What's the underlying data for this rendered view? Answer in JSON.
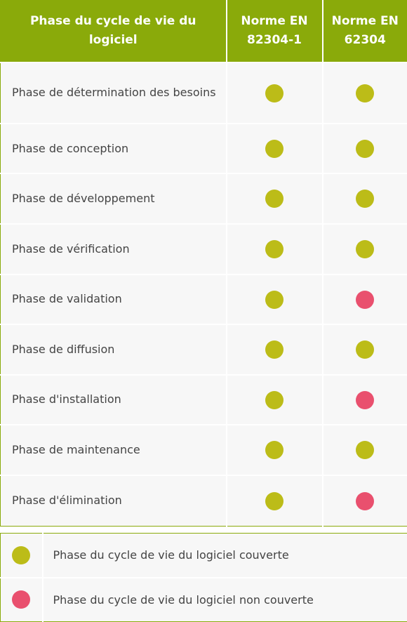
{
  "colors": {
    "header_bg": "#8aaa0a",
    "covered": "#bcbc18",
    "not_covered": "#e9506e",
    "row_bg": "#f7f7f7",
    "text": "#444444"
  },
  "table": {
    "headers": [
      "Phase du cycle de vie du logiciel",
      "Norme EN 82304-1",
      "Norme EN 62304"
    ],
    "rows": [
      {
        "phase": "Phase de détermination des besoins",
        "en82304": "covered",
        "en62304": "covered"
      },
      {
        "phase": "Phase de conception",
        "en82304": "covered",
        "en62304": "covered"
      },
      {
        "phase": "Phase de développement",
        "en82304": "covered",
        "en62304": "covered"
      },
      {
        "phase": "Phase de vérification",
        "en82304": "covered",
        "en62304": "covered"
      },
      {
        "phase": "Phase de validation",
        "en82304": "covered",
        "en62304": "not_covered"
      },
      {
        "phase": "Phase de diffusion",
        "en82304": "covered",
        "en62304": "covered"
      },
      {
        "phase": "Phase d'installation",
        "en82304": "covered",
        "en62304": "not_covered"
      },
      {
        "phase": "Phase de maintenance",
        "en82304": "covered",
        "en62304": "covered"
      },
      {
        "phase": "Phase d'élimination",
        "en82304": "covered",
        "en62304": "not_covered"
      }
    ]
  },
  "legend": [
    {
      "status": "covered",
      "label": "Phase du cycle de vie du logiciel couverte"
    },
    {
      "status": "not_covered",
      "label": "Phase du cycle de vie du logiciel non couverte"
    }
  ]
}
